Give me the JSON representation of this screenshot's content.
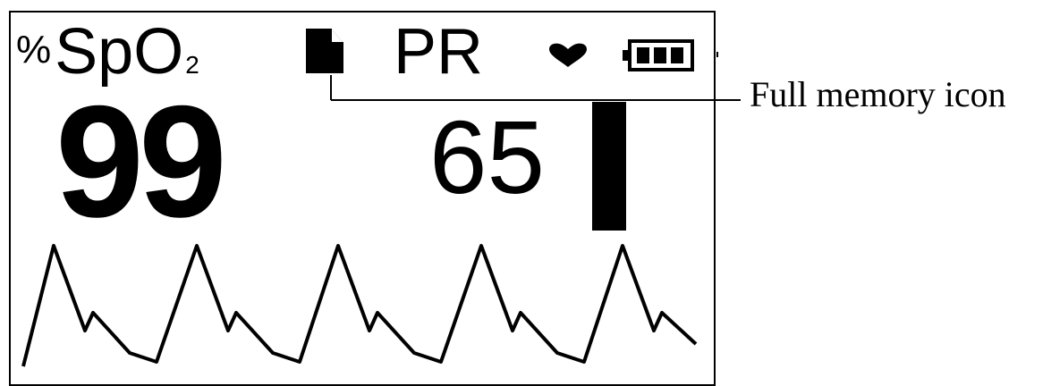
{
  "display": {
    "spo2_percent_symbol": "%",
    "spo2_label_main": "SpO",
    "spo2_label_sub": "2",
    "spo2_value": "99",
    "pr_label": "PR",
    "pr_value": "65"
  },
  "icons": {
    "memory": "memory-card-icon",
    "heart": "heart-icon",
    "battery": "battery-icon",
    "battery_level": "full"
  },
  "pulse_bar_level": "full",
  "annotation": {
    "label": "Full memory icon"
  },
  "colors": {
    "foreground": "#000000",
    "background": "#ffffff"
  }
}
